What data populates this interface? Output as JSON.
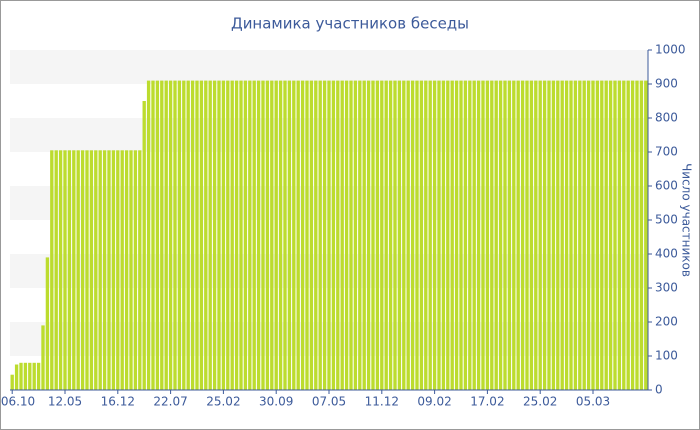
{
  "chart_data": {
    "type": "bar",
    "title": "Динамика участников беседы",
    "y_axis_label": "Число участников",
    "color": "#bcdc2e",
    "grid": true,
    "categories": [
      "06.10",
      null,
      null,
      null,
      null,
      null,
      null,
      null,
      null,
      null,
      null,
      null,
      "12.05",
      null,
      null,
      null,
      null,
      null,
      null,
      null,
      null,
      null,
      null,
      null,
      "16.12",
      null,
      null,
      null,
      null,
      null,
      null,
      null,
      null,
      null,
      null,
      null,
      "22.07",
      null,
      null,
      null,
      null,
      null,
      null,
      null,
      null,
      null,
      null,
      null,
      "25.02",
      null,
      null,
      null,
      null,
      null,
      null,
      null,
      null,
      null,
      null,
      null,
      "30.09",
      null,
      null,
      null,
      null,
      null,
      null,
      null,
      null,
      null,
      null,
      null,
      "07.05",
      null,
      null,
      null,
      null,
      null,
      null,
      null,
      null,
      null,
      null,
      null,
      "11.12",
      null,
      null,
      null,
      null,
      null,
      null,
      null,
      null,
      null,
      null,
      null,
      "09.02",
      null,
      null,
      null,
      null,
      null,
      null,
      null,
      null,
      null,
      null,
      null,
      "17.02",
      null,
      null,
      null,
      null,
      null,
      null,
      null,
      null,
      null,
      null,
      null,
      "25.02",
      null,
      null,
      null,
      null,
      null,
      null,
      null,
      null,
      null,
      null,
      null,
      "05.03",
      null,
      null,
      null,
      null,
      null,
      null,
      null,
      null,
      null,
      null,
      null,
      null
    ],
    "values": [
      45,
      75,
      80,
      80,
      80,
      80,
      80,
      190,
      390,
      705,
      705,
      705,
      705,
      705,
      705,
      705,
      705,
      705,
      705,
      705,
      705,
      705,
      705,
      705,
      705,
      705,
      705,
      705,
      705,
      705,
      850,
      910,
      910,
      910,
      910,
      910,
      910,
      910,
      910,
      910,
      910,
      910,
      910,
      910,
      910,
      910,
      910,
      910,
      910,
      910,
      910,
      910,
      910,
      910,
      910,
      910,
      910,
      910,
      910,
      910,
      910,
      910,
      910,
      910,
      910,
      910,
      910,
      910,
      910,
      910,
      910,
      910,
      910,
      910,
      910,
      910,
      910,
      910,
      910,
      910,
      910,
      910,
      910,
      910,
      910,
      910,
      910,
      910,
      910,
      910,
      910,
      910,
      910,
      910,
      910,
      910,
      910,
      910,
      910,
      910,
      910,
      910,
      910,
      910,
      910,
      910,
      910,
      910,
      910,
      910,
      910,
      910,
      910,
      910,
      910,
      910,
      910,
      910,
      910,
      910,
      910,
      910,
      910,
      910,
      910,
      910,
      910,
      910,
      910,
      910,
      910,
      910,
      910,
      910,
      910,
      910,
      910,
      910,
      910,
      910,
      910,
      910,
      910,
      910,
      910
    ],
    "ylim": [
      0,
      1000
    ],
    "yticks": [
      0,
      100,
      200,
      300,
      400,
      500,
      600,
      700,
      800,
      900,
      1000
    ]
  }
}
